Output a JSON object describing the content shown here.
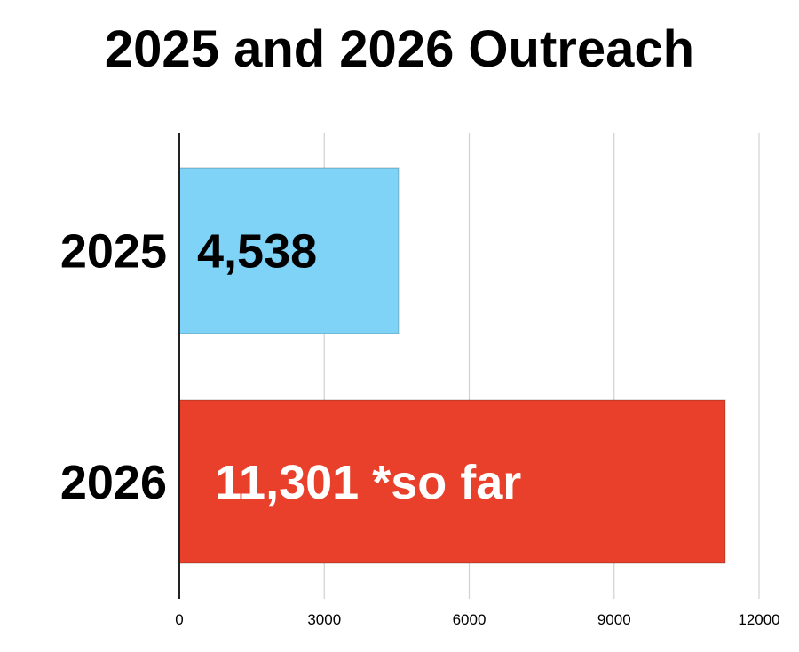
{
  "chart_data": {
    "type": "bar",
    "orientation": "horizontal",
    "title": "2025 and 2026 Outreach",
    "categories": [
      "2025",
      "2026"
    ],
    "values": [
      4538,
      11301
    ],
    "data_labels": [
      "4,538",
      "11,301 *so far"
    ],
    "bar_colors": [
      "#7fd3f7",
      "#e8402a"
    ],
    "label_colors": [
      "#000000",
      "#ffffff"
    ],
    "xlim": [
      0,
      12000
    ],
    "x_ticks": [
      0,
      3000,
      6000,
      9000,
      12000
    ],
    "x_tick_labels": [
      "0",
      "3000",
      "6000",
      "9000",
      "12000"
    ],
    "grid": true
  }
}
